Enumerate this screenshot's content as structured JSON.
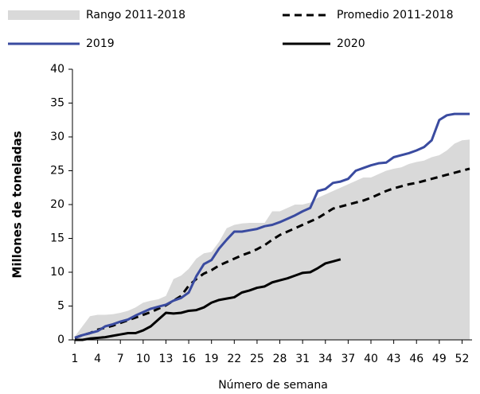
{
  "chart_data": {
    "type": "line",
    "x_label": "Número de semana",
    "y_label": "Millones de toneladas",
    "x": [
      1,
      2,
      3,
      4,
      5,
      6,
      7,
      8,
      9,
      10,
      11,
      12,
      13,
      14,
      15,
      16,
      17,
      18,
      19,
      20,
      21,
      22,
      23,
      24,
      25,
      26,
      27,
      28,
      29,
      30,
      31,
      32,
      33,
      34,
      35,
      36,
      37,
      38,
      39,
      40,
      41,
      42,
      43,
      44,
      45,
      46,
      47,
      48,
      49,
      50,
      51,
      52,
      53
    ],
    "xlim": [
      1,
      53
    ],
    "xticks": [
      1,
      4,
      7,
      10,
      13,
      16,
      19,
      22,
      25,
      28,
      31,
      34,
      37,
      40,
      43,
      46,
      49,
      52
    ],
    "ylim": [
      0,
      40
    ],
    "yticks": [
      0,
      5,
      10,
      15,
      20,
      25,
      30,
      35,
      40
    ],
    "series": [
      {
        "name": "Rango 2011-2018",
        "kind": "area",
        "color": "#d9d9d9",
        "values": [
          0.5,
          2,
          3.5,
          3.7,
          3.7,
          3.8,
          4,
          4.3,
          4.8,
          5.5,
          5.8,
          6,
          6.5,
          9,
          9.5,
          10.5,
          12,
          12.8,
          13,
          14.5,
          16.5,
          17,
          17.2,
          17.3,
          17.3,
          17.3,
          19,
          19,
          19.5,
          20,
          20,
          20.3,
          21,
          21.5,
          22,
          22.5,
          23,
          23.5,
          24,
          24,
          24.5,
          25,
          25.3,
          25.5,
          26,
          26.3,
          26.5,
          27,
          27.3,
          28,
          29,
          29.5,
          29.6
        ]
      },
      {
        "name": "Promedio 2011-2018",
        "kind": "dashed",
        "color": "#000000",
        "values": [
          0.3,
          0.7,
          1,
          1.5,
          1.8,
          2.1,
          2.5,
          2.9,
          3.3,
          3.7,
          4.1,
          4.6,
          5.1,
          5.8,
          6.5,
          8,
          9,
          9.8,
          10.3,
          11,
          11.5,
          12,
          12.5,
          12.9,
          13.4,
          14,
          14.8,
          15.5,
          16,
          16.5,
          17,
          17.5,
          18,
          18.7,
          19.4,
          19.7,
          20,
          20.3,
          20.6,
          21,
          21.5,
          22,
          22.4,
          22.7,
          23,
          23.2,
          23.5,
          23.8,
          24.1,
          24.4,
          24.7,
          25,
          25.3
        ]
      },
      {
        "name": "2019",
        "kind": "solid",
        "color": "#3a4ba0",
        "values": [
          0.3,
          0.7,
          1,
          1.3,
          2,
          2.3,
          2.7,
          3,
          3.6,
          4.1,
          4.6,
          4.9,
          5.2,
          5.8,
          6.2,
          7,
          9.4,
          11.2,
          11.8,
          13.5,
          14.8,
          16,
          16,
          16.2,
          16.4,
          16.8,
          17,
          17.4,
          17.9,
          18.4,
          19,
          19.5,
          22,
          22.3,
          23.2,
          23.4,
          23.8,
          25,
          25.4,
          25.8,
          26.1,
          26.2,
          27,
          27.3,
          27.6,
          28,
          28.5,
          29.5,
          32.5,
          33.2,
          33.4,
          33.4,
          33.4
        ]
      },
      {
        "name": "2020",
        "kind": "solid",
        "color": "#000000",
        "values": [
          0,
          0,
          0.2,
          0.3,
          0.4,
          0.6,
          0.8,
          1,
          1,
          1.4,
          2,
          3,
          4,
          3.9,
          4,
          4.3,
          4.4,
          4.8,
          5.5,
          5.9,
          6.1,
          6.3,
          7,
          7.3,
          7.7,
          7.9,
          8.5,
          8.8,
          9.1,
          9.5,
          9.9,
          10,
          10.6,
          11.3,
          11.6,
          11.9,
          null,
          null,
          null,
          null,
          null,
          null,
          null,
          null,
          null,
          null,
          null,
          null,
          null,
          null,
          null,
          null,
          null
        ]
      }
    ]
  }
}
